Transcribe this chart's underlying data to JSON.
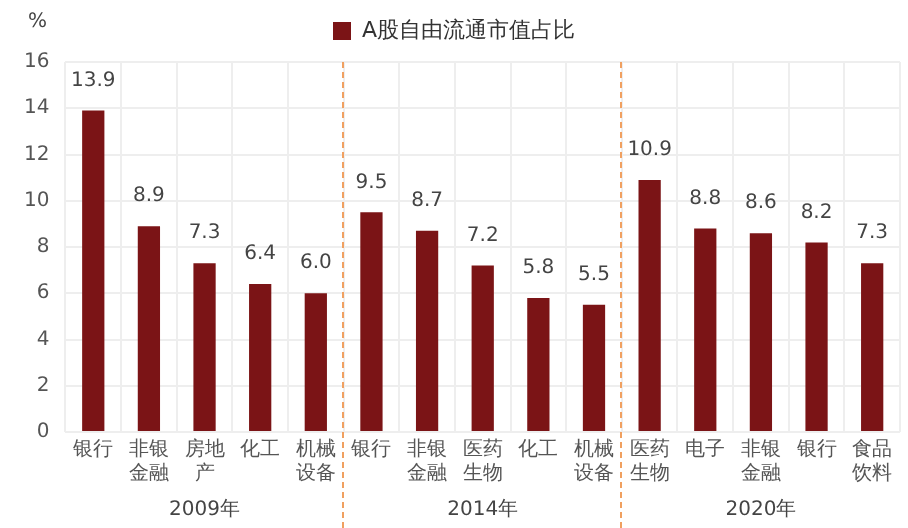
{
  "chart_data": {
    "type": "bar",
    "ylabel": "%",
    "categories": [
      "银行",
      "非银金融",
      "房地产",
      "化工",
      "机械设备",
      "银行",
      "非银金融",
      "医药生物",
      "化工",
      "机械设备",
      "医药生物",
      "电子",
      "非银金融",
      "银行",
      "食品饮料"
    ],
    "series": [
      {
        "name": "A股自由流通市值占比",
        "color": "#7b1416",
        "values": [
          13.9,
          8.9,
          7.3,
          6.4,
          6.0,
          9.5,
          8.7,
          7.2,
          5.8,
          5.5,
          10.9,
          8.8,
          8.6,
          8.2,
          7.3
        ],
        "value_labels": [
          "13.9",
          "8.9",
          "7.3",
          "6.4",
          "6.0",
          "9.5",
          "8.7",
          "7.2",
          "5.8",
          "5.5",
          "10.9",
          "8.8",
          "8.6",
          "8.2",
          "7.3"
        ]
      }
    ],
    "ylim": [
      0,
      16
    ],
    "yticks": [
      0,
      2,
      4,
      6,
      8,
      10,
      12,
      14,
      16
    ],
    "grid": true,
    "legend": "top",
    "annotations": [
      "2009年",
      "2014年",
      "2020年"
    ]
  }
}
